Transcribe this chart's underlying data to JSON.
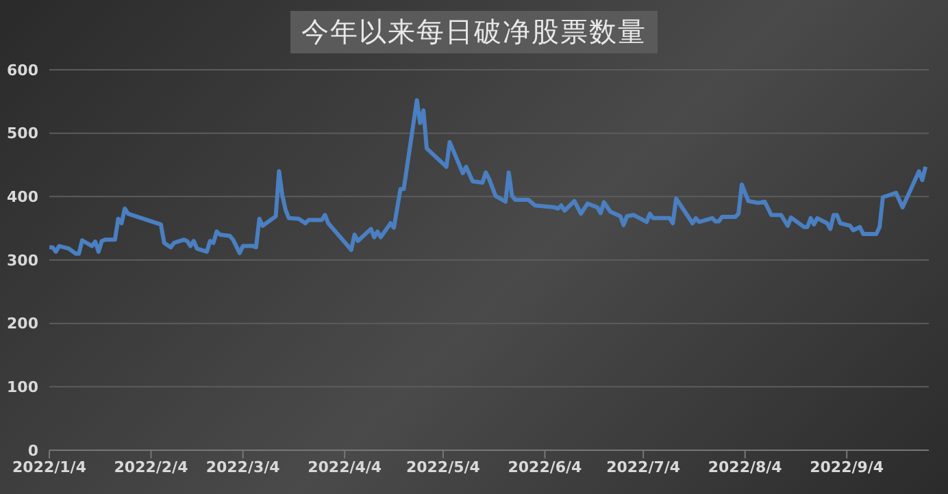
{
  "chart_data": {
    "type": "line",
    "title": "今年以来每日破净股票数量",
    "x": [
      "2022-01-04",
      "2022-01-05",
      "2022-01-06",
      "2022-01-07",
      "2022-01-10",
      "2022-01-12",
      "2022-01-13",
      "2022-01-14",
      "2022-01-17",
      "2022-01-18",
      "2022-01-19",
      "2022-01-20",
      "2022-01-21",
      "2022-01-24",
      "2022-01-25",
      "2022-01-26",
      "2022-01-27",
      "2022-01-28",
      "2022-02-07",
      "2022-02-08",
      "2022-02-10",
      "2022-02-11",
      "2022-02-14",
      "2022-02-15",
      "2022-02-16",
      "2022-02-17",
      "2022-02-18",
      "2022-02-21",
      "2022-02-22",
      "2022-02-23",
      "2022-02-24",
      "2022-02-25",
      "2022-02-28",
      "2022-03-01",
      "2022-03-03",
      "2022-03-04",
      "2022-03-07",
      "2022-03-08",
      "2022-03-09",
      "2022-03-10",
      "2022-03-14",
      "2022-03-15",
      "2022-03-16",
      "2022-03-17",
      "2022-03-18",
      "2022-03-21",
      "2022-03-23",
      "2022-03-24",
      "2022-03-28",
      "2022-03-29",
      "2022-03-30",
      "2022-04-06",
      "2022-04-07",
      "2022-04-08",
      "2022-04-12",
      "2022-04-13",
      "2022-04-14",
      "2022-04-15",
      "2022-04-18",
      "2022-04-19",
      "2022-04-21",
      "2022-04-22",
      "2022-04-26",
      "2022-04-27",
      "2022-04-28",
      "2022-04-29",
      "2022-05-05",
      "2022-05-06",
      "2022-05-10",
      "2022-05-11",
      "2022-05-13",
      "2022-05-16",
      "2022-05-17",
      "2022-05-18",
      "2022-05-20",
      "2022-05-23",
      "2022-05-24",
      "2022-05-25",
      "2022-05-26",
      "2022-05-30",
      "2022-06-01",
      "2022-06-07",
      "2022-06-08",
      "2022-06-09",
      "2022-06-10",
      "2022-06-13",
      "2022-06-15",
      "2022-06-17",
      "2022-06-20",
      "2022-06-21",
      "2022-06-22",
      "2022-06-24",
      "2022-06-27",
      "2022-06-28",
      "2022-06-29",
      "2022-07-01",
      "2022-07-04",
      "2022-07-05",
      "2022-07-06",
      "2022-07-07",
      "2022-07-12",
      "2022-07-13",
      "2022-07-14",
      "2022-07-19",
      "2022-07-20",
      "2022-07-21",
      "2022-07-25",
      "2022-07-26",
      "2022-07-27",
      "2022-07-28",
      "2022-08-01",
      "2022-08-02",
      "2022-08-03",
      "2022-08-05",
      "2022-08-08",
      "2022-08-10",
      "2022-08-12",
      "2022-08-15",
      "2022-08-17",
      "2022-08-18",
      "2022-08-22",
      "2022-08-23",
      "2022-08-24",
      "2022-08-25",
      "2022-08-26",
      "2022-08-29",
      "2022-08-30",
      "2022-08-31",
      "2022-09-01",
      "2022-09-02",
      "2022-09-05",
      "2022-09-06",
      "2022-09-08",
      "2022-09-09",
      "2022-09-13",
      "2022-09-14",
      "2022-09-15",
      "2022-09-19",
      "2022-09-21",
      "2022-09-26",
      "2022-09-27",
      "2022-09-28"
    ],
    "series": [
      {
        "color": "#4a7fc1",
        "values": [
          320,
          320,
          313,
          322,
          318,
          310,
          310,
          331,
          322,
          329,
          313,
          330,
          332,
          332,
          365,
          358,
          381,
          373,
          356,
          327,
          320,
          327,
          332,
          330,
          322,
          330,
          318,
          313,
          330,
          327,
          345,
          340,
          338,
          332,
          311,
          322,
          322,
          320,
          365,
          354,
          369,
          440,
          402,
          379,
          366,
          365,
          358,
          363,
          363,
          371,
          358,
          316,
          340,
          330,
          349,
          336,
          345,
          336,
          358,
          351,
          412,
          412,
          552,
          516,
          536,
          476,
          447,
          486,
          437,
          447,
          424,
          422,
          438,
          428,
          401,
          392,
          438,
          401,
          395,
          395,
          386,
          383,
          381,
          386,
          378,
          393,
          373,
          389,
          383,
          374,
          391,
          376,
          369,
          355,
          369,
          371,
          363,
          360,
          373,
          366,
          366,
          358,
          397,
          358,
          366,
          360,
          366,
          361,
          361,
          368,
          368,
          373,
          419,
          393,
          390,
          392,
          371,
          371,
          354,
          367,
          352,
          352,
          366,
          356,
          366,
          358,
          349,
          371,
          371,
          358,
          354,
          347,
          352,
          341,
          341,
          352,
          399,
          406,
          383,
          440,
          426,
          447
        ]
      }
    ],
    "xlim": [
      "2022-01-04",
      "2022-09-29"
    ],
    "xticks": [
      {
        "value": "2022-01-04",
        "label": "2022/1/4"
      },
      {
        "value": "2022-02-04",
        "label": "2022/2/4"
      },
      {
        "value": "2022-03-04",
        "label": "2022/3/4"
      },
      {
        "value": "2022-04-04",
        "label": "2022/4/4"
      },
      {
        "value": "2022-05-04",
        "label": "2022/5/4"
      },
      {
        "value": "2022-06-04",
        "label": "2022/6/4"
      },
      {
        "value": "2022-07-04",
        "label": "2022/7/4"
      },
      {
        "value": "2022-08-04",
        "label": "2022/8/4"
      },
      {
        "value": "2022-09-04",
        "label": "2022/9/4"
      }
    ],
    "ylim": [
      0,
      600
    ],
    "yticks": [
      0,
      100,
      200,
      300,
      400,
      500,
      600
    ],
    "grid": "y",
    "legend": false,
    "marker": "none",
    "line_style": "solid"
  }
}
